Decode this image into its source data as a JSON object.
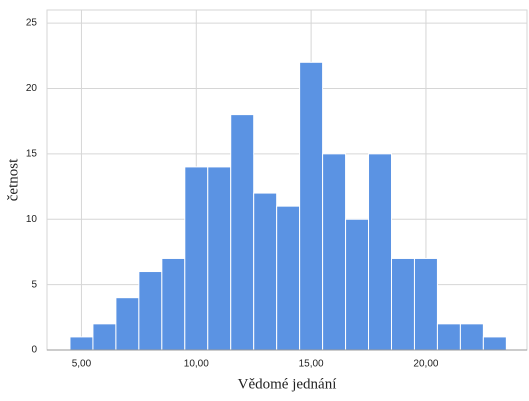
{
  "chart_data": {
    "type": "histogram",
    "xlabel": "Vědomé jednání",
    "ylabel": "četnost",
    "bins": [
      4.5,
      5.5,
      6.5,
      7.5,
      8.5,
      9.5,
      10.5,
      11.5,
      12.5,
      13.5,
      14.5,
      15.5,
      16.5,
      17.5,
      18.5,
      19.5,
      20.5,
      21.5,
      22.5,
      23.5
    ],
    "values": [
      1,
      2,
      4,
      6,
      7,
      14,
      14,
      18,
      12,
      11,
      22,
      15,
      10,
      15,
      7,
      7,
      2,
      2,
      1
    ],
    "color": "#5b93e3",
    "xlim": [
      3.5,
      24.4
    ],
    "ylim": [
      0,
      26
    ],
    "xticks": [
      {
        "value": 5,
        "label": "5,00"
      },
      {
        "value": 10,
        "label": "10,00"
      },
      {
        "value": 15,
        "label": "15,00"
      },
      {
        "value": 20,
        "label": "20,00"
      }
    ],
    "yticks": [
      0,
      5,
      10,
      15,
      20,
      25
    ],
    "grid": true
  }
}
